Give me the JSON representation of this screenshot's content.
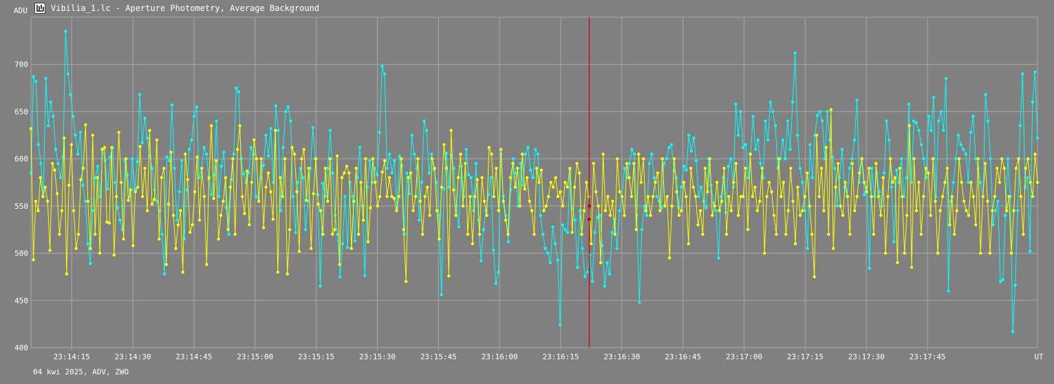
{
  "window": {
    "title": "Vibilia_1.lc - Aperture Photometry, Average Background",
    "footer": "04 kwi 2025, ADV, ZWO",
    "icon": "lightcurve-app-icon"
  },
  "colors": {
    "background": "#808080",
    "grid": "#a8a8a8",
    "series_cyan": "#00ffff",
    "series_yellow": "#ffff00",
    "cursor": "#cc0000",
    "text": "#ffffff"
  },
  "chart_data": {
    "type": "line",
    "ylabel": "ADU",
    "xunit": "UT",
    "ylim": [
      400,
      750
    ],
    "yticks": [
      400,
      450,
      500,
      550,
      600,
      650,
      700
    ],
    "xlim": [
      "23:14:05",
      "23:18:12"
    ],
    "xticks": [
      "23:14:15",
      "23:14:30",
      "23:14:45",
      "23:15:00",
      "23:15:15",
      "23:15:30",
      "23:15:45",
      "23:16:00",
      "23:16:15",
      "23:16:30",
      "23:16:45",
      "23:17:00",
      "23:17:15",
      "23:17:30",
      "23:17:45"
    ],
    "cursor_x": "23:16:22",
    "cursor_values": [
      550,
      536
    ],
    "grid": true,
    "legend": "none",
    "series": [
      {
        "color": "cyan",
        "x_start": "23:14:05",
        "x_end": "23:18:12",
        "values": [
          585,
          687,
          682,
          615,
          595,
          560,
          685,
          635,
          660,
          645,
          610,
          595,
          580,
          602,
          735,
          690,
          668,
          645,
          625,
          605,
          628,
          572,
          555,
          510,
          489,
          545,
          580,
          592,
          560,
          610,
          598,
          568,
          602,
          612,
          575,
          548,
          535,
          525,
          598,
          583,
          560,
          600,
          568,
          597,
          668,
          617,
          643,
          622,
          603,
          590,
          567,
          555,
          545,
          520,
          478,
          602,
          598,
          657,
          590,
          535,
          565,
          598,
          515,
          567,
          610,
          620,
          645,
          655,
          580,
          590,
          612,
          605,
          578,
          562,
          583,
          640,
          560,
          592,
          607,
          548,
          520,
          578,
          605,
          675,
          671,
          600,
          584,
          575,
          585,
          612,
          605,
          560,
          558,
          580,
          593,
          625,
          603,
          632,
          575,
          656,
          630,
          545,
          612,
          650,
          655,
          640,
          560,
          522,
          575,
          590,
          580,
          525,
          555,
          590,
          633,
          600,
          562,
          465,
          574,
          560,
          590,
          630,
          585,
          540,
          520,
          475,
          510,
          560,
          506,
          575,
          560,
          513,
          580,
          612,
          550,
          476,
          570,
          598,
          575,
          590,
          583,
          628,
          698,
          690,
          590,
          605,
          585,
          598,
          548,
          603,
          593,
          520,
          585,
          563,
          625,
          605,
          590,
          535,
          575,
          640,
          630,
          585,
          605,
          588,
          575,
          540,
          456,
          568,
          606,
          570,
          604,
          590,
          550,
          528,
          592,
          560,
          610,
          583,
          580,
          545,
          595,
          535,
          492,
          525,
          545,
          562,
          580,
          503,
          468,
          480,
          605,
          560,
          540,
          512,
          567,
          600,
          585,
          550,
          595,
          572,
          605,
          612,
          588,
          580,
          610,
          605,
          540,
          520,
          505,
          500,
          490,
          528,
          510,
          493,
          424,
          530,
          525,
          522,
          588,
          547,
          535,
          485,
          545,
          505,
          475,
          480,
          498,
          470,
          522,
          538,
          540,
          508,
          465,
          490,
          478,
          522,
          536,
          505,
          545,
          560,
          590,
          580,
          595,
          610,
          605,
          540,
          448,
          525,
          550,
          540,
          595,
          605,
          580,
          560,
          555,
          548,
          595,
          600,
          612,
          615,
          588,
          580,
          548,
          570,
          592,
          588,
          625,
          608,
          622,
          598,
          560,
          570,
          555,
          548,
          600,
          572,
          553,
          545,
          495,
          560,
          580,
          543,
          592,
          600,
          570,
          658,
          625,
          650,
          612,
          615,
          580,
          605,
          645,
          610,
          620,
          595,
          580,
          640,
          620,
          660,
          650,
          635,
          590,
          600,
          620,
          600,
          640,
          610,
          660,
          712,
          625,
          590,
          575,
          545,
          505,
          615,
          580,
          625,
          646,
          650,
          640,
          600,
          650,
          620,
          602,
          590,
          550,
          580,
          610,
          570,
          560,
          590,
          600,
          620,
          662,
          575,
          600,
          562,
          570,
          484,
          590,
          560,
          585,
          565,
          550,
          585,
          640,
          620,
          570,
          512,
          588,
          575,
          600,
          560,
          580,
          658,
          575,
          640,
          638,
          630,
          615,
          600,
          580,
          645,
          630,
          665,
          560,
          640,
          650,
          630,
          685,
          460,
          555,
          575,
          600,
          625,
          615,
          610,
          605,
          575,
          628,
          645,
          600,
          590,
          575,
          560,
          668,
          640,
          600,
          530,
          545,
          555,
          470,
          472,
          540,
          600,
          560,
          417,
          466,
          545,
          635,
          690,
          570,
          580,
          502,
          660,
          692,
          622
        ]
      },
      {
        "color": "yellow",
        "x_start": "23:14:05",
        "x_end": "23:18:12",
        "values": [
          632,
          493,
          555,
          545,
          580,
          560,
          570,
          555,
          503,
          595,
          588,
          563,
          520,
          545,
          622,
          478,
          572,
          615,
          545,
          505,
          520,
          578,
          590,
          636,
          555,
          505,
          625,
          520,
          580,
          500,
          610,
          612,
          533,
          532,
          612,
          498,
          560,
          628,
          575,
          515,
          600,
          556,
          567,
          508,
          565,
          570,
          613,
          560,
          590,
          545,
          630,
          552,
          557,
          620,
          515,
          580,
          590,
          488,
          552,
          607,
          540,
          505,
          530,
          545,
          480,
          605,
          578,
          522,
          530,
          565,
          602,
          535,
          590,
          560,
          488,
          580,
          635,
          558,
          598,
          515,
          540,
          555,
          580,
          525,
          570,
          600,
          520,
          610,
          635,
          560,
          542,
          587,
          530,
          575,
          620,
          600,
          555,
          600,
          527,
          570,
          585,
          565,
          536,
          630,
          480,
          580,
          560,
          600,
          478,
          525,
          612,
          605,
          565,
          502,
          600,
          610,
          556,
          590,
          505,
          563,
          600,
          552,
          545,
          520,
          590,
          555,
          600,
          520,
          525,
          603,
          488,
          580,
          585,
          592,
          585,
          505,
          555,
          590,
          520,
          575,
          535,
          600,
          512,
          548,
          600,
          575,
          550,
          560,
          586,
          598,
          560,
          580,
          560,
          558,
          545,
          560,
          600,
          525,
          470,
          580,
          585,
          545,
          560,
          600,
          555,
          520,
          560,
          570,
          540,
          600,
          590,
          545,
          515,
          570,
          615,
          590,
          476,
          630,
          567,
          540,
          580,
          605,
          550,
          595,
          520,
          560,
          510,
          560,
          578,
          520,
          580,
          555,
          540,
          612,
          605,
          560,
          590,
          545,
          610,
          555,
          535,
          520,
          580,
          595,
          570,
          590,
          550,
          605,
          568,
          580,
          555,
          545,
          520,
          590,
          575,
          588,
          545,
          550,
          560,
          575,
          570,
          580,
          560,
          565,
          550,
          575,
          570,
          590,
          522,
          570,
          595,
          585,
          520,
          545,
          575,
          560,
          510,
          595,
          565,
          550,
          490,
          605,
          545,
          560,
          540,
          555,
          520,
          600,
          565,
          560,
          540,
          595,
          580,
          560,
          595,
          525,
          605,
          575,
          600,
          545,
          560,
          540,
          560,
          575,
          585,
          545,
          600,
          550,
          560,
          495,
          550,
          600,
          565,
          540,
          545,
          575,
          560,
          510,
          590,
          570,
          560,
          530,
          545,
          520,
          590,
          565,
          600,
          540,
          550,
          575,
          545,
          555,
          590,
          520,
          560,
          545,
          575,
          595,
          540,
          560,
          560,
          590,
          525,
          605,
          560,
          570,
          545,
          555,
          590,
          500,
          560,
          575,
          565,
          540,
          520,
          600,
          560,
          575,
          520,
          545,
          590,
          555,
          510,
          570,
          540,
          545,
          560,
          585,
          550,
          520,
          475,
          625,
          560,
          590,
          545,
          612,
          520,
          652,
          505,
          570,
          595,
          550,
          540,
          575,
          560,
          520,
          595,
          545,
          560,
          585,
          600,
          575,
          565,
          590,
          560,
          520,
          595,
          560,
          540,
          580,
          500,
          560,
          600,
          575,
          580,
          490,
          590,
          560,
          500,
          540,
          635,
          485,
          600,
          545,
          575,
          520,
          560,
          590,
          585,
          540,
          600,
          555,
          500,
          545,
          560,
          575,
          590,
          530,
          560,
          520,
          545,
          600,
          575,
          555,
          545,
          540,
          575,
          560,
          530,
          600,
          500,
          560,
          595,
          555,
          500,
          545,
          560,
          590,
          575,
          600,
          590,
          545,
          560,
          500,
          545,
          590,
          600,
          560,
          520,
          590,
          600,
          575,
          560,
          605,
          575
        ]
      }
    ]
  }
}
